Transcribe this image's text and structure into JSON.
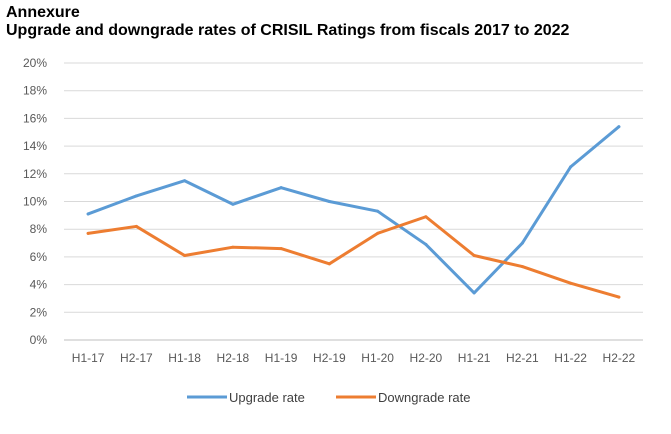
{
  "chart_data": {
    "type": "line",
    "title": "Annexure",
    "subtitle": "Upgrade and downgrade rates of CRISIL Ratings from fiscals 2017 to 2022",
    "xlabel": "",
    "ylabel": "",
    "ylim": [
      0,
      20
    ],
    "yticks": [
      "0%",
      "2%",
      "4%",
      "6%",
      "8%",
      "10%",
      "12%",
      "14%",
      "16%",
      "18%",
      "20%"
    ],
    "grid": true,
    "legend_position": "bottom",
    "categories": [
      "H1-17",
      "H2-17",
      "H1-18",
      "H2-18",
      "H1-19",
      "H2-19",
      "H1-20",
      "H2-20",
      "H1-21",
      "H2-21",
      "H1-22",
      "H2-22"
    ],
    "series": [
      {
        "name": "Upgrade rate",
        "color": "#5B9BD5",
        "values": [
          9.1,
          10.4,
          11.5,
          9.8,
          11.0,
          10.0,
          9.3,
          6.9,
          3.4,
          7.0,
          12.5,
          15.4
        ]
      },
      {
        "name": "Downgrade rate",
        "color": "#ED7D31",
        "values": [
          7.7,
          8.2,
          6.1,
          6.7,
          6.6,
          5.5,
          7.7,
          8.9,
          6.1,
          5.3,
          4.1,
          3.1
        ]
      }
    ]
  }
}
